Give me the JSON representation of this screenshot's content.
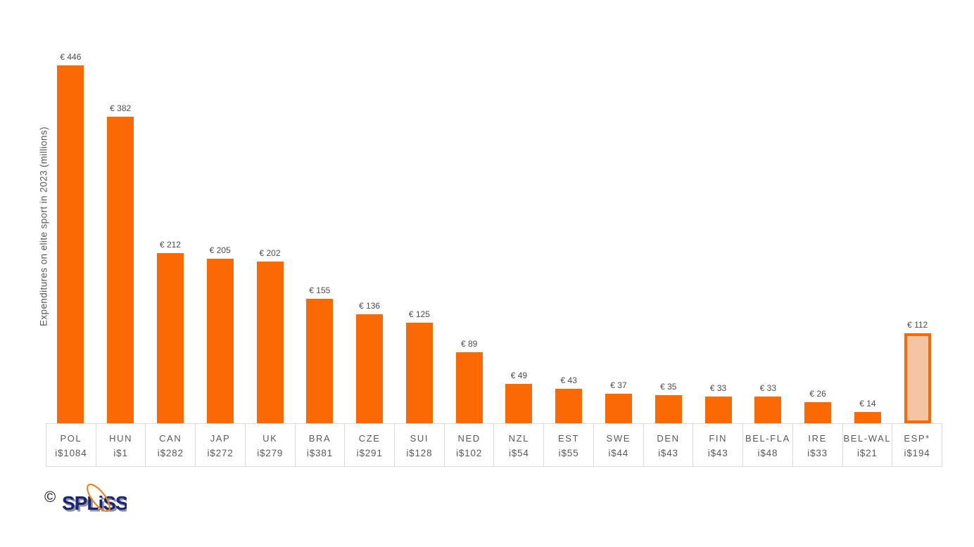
{
  "chart_data": {
    "type": "bar",
    "title": "",
    "xlabel": "",
    "ylabel": "Expenditures on elite sport in 2023 (millions)",
    "ylim": [
      0,
      478
    ],
    "grid": false,
    "legend_position": "none",
    "categories": [
      "POL",
      "HUN",
      "CAN",
      "JAP",
      "UK",
      "BRA",
      "CZE",
      "SUI",
      "NED",
      "NZL",
      "EST",
      "SWE",
      "DEN",
      "FIN",
      "BEL-FLA",
      "IRE",
      "BEL-WAL",
      "ESP*"
    ],
    "values": [
      446,
      382,
      212,
      205,
      202,
      155,
      136,
      125,
      89,
      49,
      43,
      37,
      35,
      33,
      33,
      26,
      14,
      112
    ],
    "bar_labels": [
      "€ 446",
      "€ 382",
      "€ 212",
      "€ 205",
      "€ 202",
      "€ 155",
      "€ 136",
      "€ 125",
      "€ 89",
      "€ 49",
      "€ 43",
      "€ 37",
      "€ 35",
      "€ 33",
      "€ 33",
      "€ 26",
      "€ 14",
      "€ 112"
    ],
    "secondary_labels": [
      "i$1084",
      "i$1",
      "i$282",
      "i$272",
      "i$279",
      "i$381",
      "i$291",
      "i$128",
      "i$102",
      "i$54",
      "i$55",
      "i$44",
      "i$43",
      "i$43",
      "i$48",
      "i$33",
      "i$21",
      "i$194"
    ],
    "highlight_index": 17,
    "colors": {
      "bar": "#FB6904",
      "highlight_fill": "#F5C5A3",
      "highlight_border": "#FB6904",
      "value_label": "#4D4D4D",
      "axis_text": "#595959",
      "table_border": "#D9D9D9"
    }
  },
  "logo": {
    "copyright": "©",
    "text": "SPLiSS",
    "text_color": "#1B2575",
    "shadow_color": "#9096A0",
    "orbit_color": "#E8851F"
  }
}
